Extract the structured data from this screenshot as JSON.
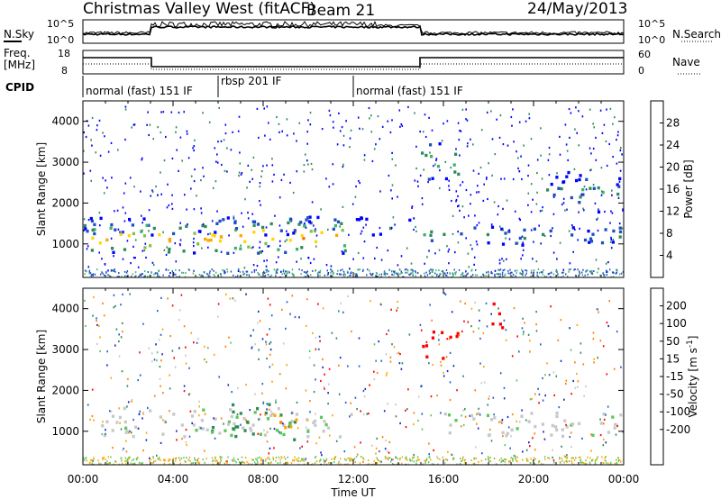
{
  "header": {
    "title": "Christmas Valley West (fitACF)",
    "beam": "Beam 21",
    "date": "24/May/2013"
  },
  "panels": {
    "nsky_label": "N.Sky",
    "nsearch_label": "N.Search",
    "freq_label_line1": "Freq.",
    "freq_label_line2": "[MHz]",
    "nave_label": "Nave",
    "cpid_label": "CPID",
    "noise_left_ticks": [
      "10^5",
      "10^0"
    ],
    "noise_right_ticks": [
      "10^5",
      "10^0"
    ],
    "freq_left_ticks": [
      "18",
      "8"
    ],
    "freq_right_ticks": [
      "60",
      "0"
    ]
  },
  "cpid_segments": [
    {
      "label": "normal (fast) 151 IF",
      "start": "00:00",
      "end": "06:00"
    },
    {
      "label": "rbsp 201 IF",
      "start": "06:00",
      "end": "12:00"
    },
    {
      "label": "normal (fast) 151 IF",
      "start": "12:00",
      "end": "24:00"
    }
  ],
  "colors": {
    "power_scale": [
      "#0000ff",
      "#1f4fbf",
      "#2e8b57",
      "#3cb371",
      "#7fc24a",
      "#ffd700",
      "#ffa500",
      "#ff6a00",
      "#ff0000"
    ],
    "velocity_scale": [
      "#1028c0",
      "#2060d0",
      "#2e8b57",
      "#5ac85a",
      "#c8c8c8",
      "#c8c8c8",
      "#ffa500",
      "#ff7f00",
      "#ff3000",
      "#ff0000"
    ]
  },
  "chart_data": [
    {
      "type": "heatmap",
      "name": "power",
      "ylabel": "Slant Range [km]",
      "yticks": [
        1000,
        2000,
        3000,
        4000
      ],
      "ylim": [
        180,
        4500
      ],
      "colorbar_label": "Power [dB]",
      "colorbar_ticks": [
        4,
        8,
        12,
        16,
        20,
        24,
        28
      ],
      "colorbar_range": [
        0,
        32
      ],
      "bands": [
        {
          "t0": 0.3,
          "t1": 5.8,
          "r_lo": 800,
          "r_hi": 1500,
          "peak_db": 28
        },
        {
          "t0": 5.0,
          "t1": 12.0,
          "r_lo": 800,
          "r_hi": 1600,
          "peak_db": 28
        },
        {
          "t0": 0.0,
          "t1": 15.0,
          "r_lo": 1250,
          "r_hi": 1700,
          "peak_db": 12
        },
        {
          "t0": 15.0,
          "t1": 16.7,
          "r_lo": 2600,
          "r_hi": 3500,
          "peak_db": 20
        },
        {
          "t0": 15.1,
          "t1": 24.0,
          "r_lo": 1000,
          "r_hi": 1500,
          "peak_db": 12
        },
        {
          "t0": 20.5,
          "t1": 24.0,
          "r_lo": 1800,
          "r_hi": 2800,
          "peak_db": 12
        }
      ]
    },
    {
      "type": "heatmap",
      "name": "velocity",
      "ylabel": "Slant Range [km]",
      "xlabel": "Time UT",
      "yticks": [
        1000,
        2000,
        3000,
        4000
      ],
      "ylim": [
        180,
        4500
      ],
      "xticks": [
        "00:00",
        "04:00",
        "08:00",
        "12:00",
        "16:00",
        "20:00",
        "00:00"
      ],
      "xlim": [
        0,
        24
      ],
      "colorbar_label": "Velocity [m s^-1]",
      "colorbar_ticks": [
        200,
        100,
        50,
        15,
        -15,
        -50,
        -100,
        -200
      ],
      "bands": [
        {
          "t0": 0.3,
          "t1": 12.0,
          "r_lo": 900,
          "r_hi": 1600,
          "velocity": 0
        },
        {
          "t0": 5.5,
          "t1": 9.5,
          "r_lo": 800,
          "r_hi": 1700,
          "velocity": 40
        },
        {
          "t0": 8.0,
          "t1": 9.5,
          "r_lo": 1100,
          "r_hi": 1500,
          "velocity": -60
        },
        {
          "t0": 15.0,
          "t1": 16.7,
          "r_lo": 2800,
          "r_hi": 3500,
          "velocity": -250
        },
        {
          "t0": 18.0,
          "t1": 18.7,
          "r_lo": 3500,
          "r_hi": 4300,
          "velocity": -250
        },
        {
          "t0": 15.1,
          "t1": 24.0,
          "r_lo": 900,
          "r_hi": 1500,
          "velocity": 0
        }
      ]
    }
  ]
}
